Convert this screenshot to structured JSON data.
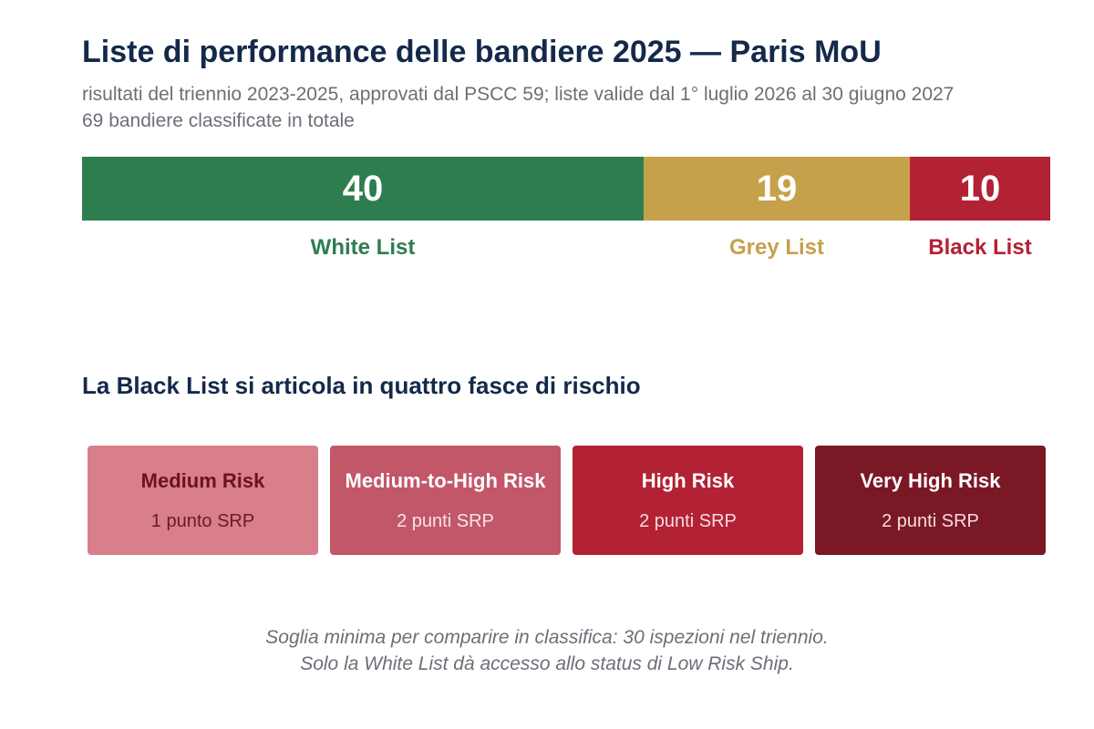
{
  "title": "Liste di performance delle bandiere 2025 — Paris MoU",
  "subtitle_lines": [
    "risultati del triennio 2023-2025, approvati dal PSCC 59; liste valide dal 1° luglio 2026 al 30 giugno 2027",
    "69 bandiere classificate in totale"
  ],
  "chart_data": {
    "type": "bar",
    "orientation": "horizontal-stacked",
    "total": 69,
    "categories": [
      "White List",
      "Grey List",
      "Black List"
    ],
    "values": [
      40,
      19,
      10
    ],
    "colors": [
      "#2e7d4f",
      "#c6a14c",
      "#b22234"
    ],
    "series": [
      {
        "name": "White List",
        "value": 40,
        "color": "#2e7d4f"
      },
      {
        "name": "Grey List",
        "value": 19,
        "color": "#c6a14c"
      },
      {
        "name": "Black List",
        "value": 10,
        "color": "#b22234"
      }
    ],
    "legend": "below-bars"
  },
  "black_list_section": {
    "heading": "La Black List si articola in quattro fasce di rischio",
    "bands": [
      {
        "name": "Medium Risk",
        "points": "1 punto SRP",
        "bg": "#d97f8c",
        "fg": "#6b1220",
        "sub_fg": "#6b1a28"
      },
      {
        "name": "Medium-to-High Risk",
        "points": "2 punti SRP",
        "bg": "#c2576a",
        "fg": "#ffffff",
        "sub_fg": "#f7e3e6"
      },
      {
        "name": "High Risk",
        "points": "2 punti SRP",
        "bg": "#b22234",
        "fg": "#ffffff",
        "sub_fg": "#f6dde0"
      },
      {
        "name": "Very High Risk",
        "points": "2 punti SRP",
        "bg": "#7b1826",
        "fg": "#ffffff",
        "sub_fg": "#f3dde0"
      }
    ]
  },
  "footnote_lines": [
    "Soglia minima per comparire in classifica: 30 ispezioni nel triennio.",
    "Solo la White List dà accesso allo status di Low Risk Ship."
  ]
}
